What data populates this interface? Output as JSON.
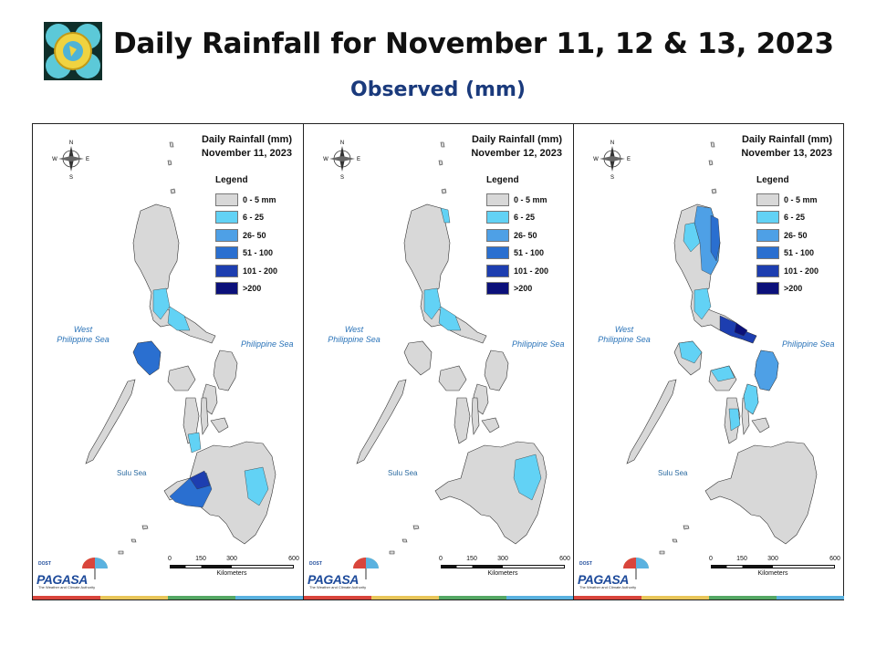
{
  "header": {
    "title": "Daily Rainfall for November 11, 12 & 13, 2023",
    "subtitle": "Observed (mm)"
  },
  "legend": {
    "title": "Legend",
    "heading": "Daily Rainfall (mm)",
    "classes": [
      {
        "label": "0 - 5 mm",
        "color": "#d8d8d8"
      },
      {
        "label": "6 - 25",
        "color": "#62d2f5"
      },
      {
        "label": "26- 50",
        "color": "#4ea0e6"
      },
      {
        "label": "51 - 100",
        "color": "#2a6fd0"
      },
      {
        "label": "101 - 200",
        "color": "#1d3eb0"
      },
      {
        "label": ">200",
        "color": "#0b107a"
      }
    ]
  },
  "panels": [
    {
      "date": "November 11, 2023",
      "heavy_regions": [
        "Southern Luzon (Mindoro) 51-100",
        "Western Mindanao (Zamboanga) 51-100"
      ],
      "moderate_regions": [
        "Central Luzon 6-25",
        "Eastern Mindanao 6-25",
        "Panay/Negros 6-25"
      ]
    },
    {
      "date": "November 12, 2023",
      "heavy_regions": [],
      "moderate_regions": [
        "Central Luzon 6-25",
        "Northeast Luzon tip 6-25",
        "Eastern Mindanao 6-25"
      ]
    },
    {
      "date": "November 13, 2023",
      "heavy_regions": [
        "Northeastern Luzon 26-50",
        "Bicol Region 51-200"
      ],
      "moderate_regions": [
        "Eastern Visayas 6-25",
        "Mindoro 6-25",
        "Panay 6-25"
      ]
    }
  ],
  "labels": {
    "west_sea": "West\nPhilippine Sea",
    "east_sea": "Philippine Sea",
    "sulu_sea": "Sulu Sea",
    "compass_n": "N",
    "compass_s": "S",
    "compass_e": "E",
    "compass_w": "W"
  },
  "scale": {
    "ticks": [
      "0",
      "150",
      "300",
      "600"
    ],
    "unit": "Kilometers"
  },
  "branding": {
    "agency": "PAGASA",
    "dost": "DOST",
    "tagline": "The Weather and Climate Authority",
    "strip_colors": [
      "#d9453c",
      "#e9c65a",
      "#55a864",
      "#5ab2e0"
    ]
  }
}
